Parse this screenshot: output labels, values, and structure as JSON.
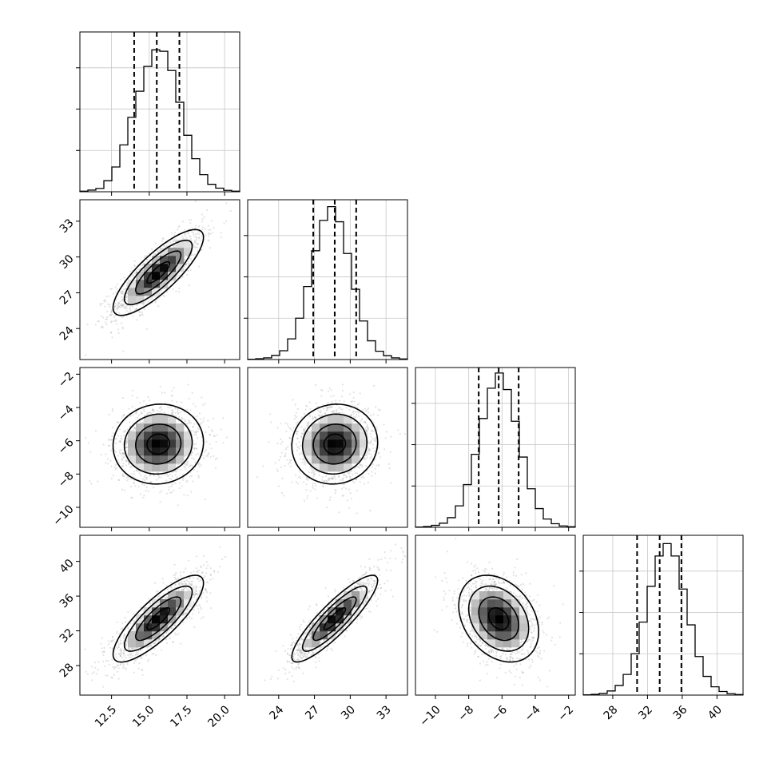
{
  "chart_data": {
    "type": "corner",
    "title": "",
    "parameters": [
      {
        "range": [
          10.4,
          21.0
        ],
        "ticks": [
          12.5,
          15.0,
          17.5,
          20.0
        ],
        "tick_labels": [
          "12.5",
          "15.0",
          "17.5",
          "20.0"
        ],
        "quantiles": [
          14.0,
          15.5,
          17.0
        ],
        "hist_edges_start": 10.4,
        "hist_bin_width": 0.53,
        "hist_counts": [
          2,
          6,
          12,
          40,
          90,
          170,
          270,
          365,
          455,
          515,
          510,
          440,
          325,
          205,
          120,
          62,
          27,
          13,
          5,
          2
        ]
      },
      {
        "range": [
          21.4,
          34.8
        ],
        "ticks": [
          24,
          27,
          30,
          33
        ],
        "tick_labels": [
          "24",
          "27",
          "30",
          "33"
        ],
        "quantiles": [
          26.9,
          28.7,
          30.5
        ],
        "hist_edges_start": 21.4,
        "hist_bin_width": 0.67,
        "hist_counts": [
          1,
          3,
          6,
          15,
          32,
          75,
          150,
          265,
          395,
          505,
          555,
          500,
          385,
          255,
          140,
          68,
          30,
          14,
          6,
          2
        ]
      },
      {
        "range": [
          -11.2,
          -1.6
        ],
        "ticks": [
          -10,
          -8,
          -6,
          -4,
          -2
        ],
        "tick_labels": [
          "−10",
          "−8",
          "−6",
          "−4",
          "−2"
        ],
        "quantiles": [
          -7.4,
          -6.2,
          -5.0
        ],
        "hist_edges_start": -11.2,
        "hist_bin_width": 0.48,
        "hist_counts": [
          1,
          3,
          7,
          15,
          35,
          78,
          155,
          265,
          395,
          505,
          560,
          500,
          385,
          255,
          140,
          68,
          30,
          13,
          5,
          2
        ]
      },
      {
        "range": [
          24.6,
          43.0
        ],
        "ticks": [
          28,
          32,
          36,
          40
        ],
        "tick_labels": [
          "28",
          "32",
          "36",
          "40"
        ],
        "quantiles": [
          30.8,
          33.4,
          35.9
        ],
        "hist_edges_start": 24.6,
        "hist_bin_width": 0.92,
        "hist_counts": [
          1,
          3,
          6,
          15,
          35,
          75,
          150,
          265,
          395,
          505,
          550,
          505,
          385,
          255,
          140,
          68,
          30,
          13,
          5,
          2
        ]
      }
    ],
    "hist_ylim": [
      0,
      580
    ],
    "hist_ticks": [
      150,
      300,
      450
    ],
    "correlations": {
      "0-1": 0.82,
      "0-2": 0.05,
      "1-2": 0.05,
      "0-3": 0.82,
      "1-3": 0.88,
      "2-3": -0.3
    },
    "centers": [
      15.6,
      28.7,
      -6.2,
      33.4
    ],
    "sigmas": [
      1.5,
      1.8,
      1.2,
      2.5
    ],
    "density_levels_sigma": [
      0.5,
      1.0,
      1.5,
      2.0
    ]
  }
}
